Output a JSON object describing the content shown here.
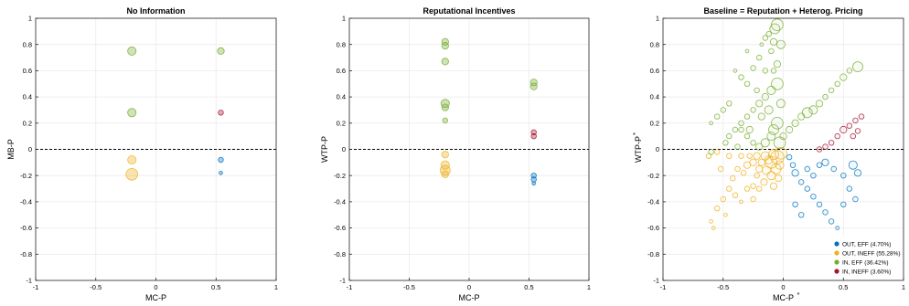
{
  "chart_data": [
    {
      "type": "scatter",
      "title": "No Information",
      "xlabel": "MC-P",
      "ylabel": "MB-P",
      "xlim": [
        -1,
        1
      ],
      "ylim": [
        -1,
        1
      ],
      "xticks": [
        -1,
        -0.5,
        0,
        0.5,
        1
      ],
      "xtick_labels": [
        "-1",
        "-0.5",
        "0",
        "0.5",
        "1"
      ],
      "yticks": [
        -1,
        -0.8,
        -0.6,
        -0.4,
        -0.2,
        0,
        0.2,
        0.4,
        0.6,
        0.8,
        1
      ],
      "ytick_labels": [
        "-1",
        "-0.8",
        "-0.6",
        "-0.4",
        "-0.2",
        "0",
        "0.2",
        "0.4",
        "0.6",
        "0.8",
        "1"
      ],
      "grid": true,
      "reference_line_y": 0,
      "series": [
        {
          "color": "#0072BD",
          "points": [
            [
              0.54,
              -0.08,
              2
            ],
            [
              0.54,
              -0.18,
              1
            ]
          ]
        },
        {
          "color": "#EDB120",
          "points": [
            [
              -0.2,
              -0.08,
              4
            ],
            [
              -0.2,
              -0.19,
              6
            ]
          ]
        },
        {
          "color": "#77AC30",
          "points": [
            [
              -0.2,
              0.75,
              4
            ],
            [
              -0.2,
              0.28,
              4
            ],
            [
              0.54,
              0.75,
              3
            ]
          ]
        },
        {
          "color": "#A2142F",
          "points": [
            [
              0.54,
              0.28,
              2
            ]
          ]
        }
      ]
    },
    {
      "type": "scatter",
      "title": "Reputational Incentives",
      "xlabel": "MC-P",
      "ylabel": "WTP-P",
      "xlim": [
        -1,
        1
      ],
      "ylim": [
        -1,
        1
      ],
      "xticks": [
        -1,
        -0.5,
        0,
        0.5,
        1
      ],
      "xtick_labels": [
        "-1",
        "-0.5",
        "0",
        "0.5",
        "1"
      ],
      "yticks": [
        -1,
        -0.8,
        -0.6,
        -0.4,
        -0.2,
        0,
        0.2,
        0.4,
        0.6,
        0.8,
        1
      ],
      "ytick_labels": [
        "-1",
        "-0.8",
        "-0.6",
        "-0.4",
        "-0.2",
        "0",
        "0.2",
        "0.4",
        "0.6",
        "0.8",
        "1"
      ],
      "grid": true,
      "reference_line_y": 0,
      "series": [
        {
          "color": "#0072BD",
          "points": [
            [
              0.54,
              -0.2,
              2
            ],
            [
              0.54,
              -0.23,
              2
            ],
            [
              0.54,
              -0.26,
              1
            ]
          ]
        },
        {
          "color": "#EDB120",
          "points": [
            [
              -0.2,
              -0.04,
              3
            ],
            [
              -0.2,
              -0.12,
              4
            ],
            [
              -0.2,
              -0.16,
              5
            ],
            [
              -0.2,
              -0.19,
              3
            ]
          ]
        },
        {
          "color": "#77AC30",
          "points": [
            [
              -0.2,
              0.82,
              3
            ],
            [
              -0.2,
              0.79,
              3
            ],
            [
              -0.2,
              0.67,
              3
            ],
            [
              -0.2,
              0.35,
              4
            ],
            [
              -0.2,
              0.32,
              3
            ],
            [
              -0.2,
              0.22,
              2
            ],
            [
              0.54,
              0.51,
              3
            ],
            [
              0.54,
              0.48,
              3
            ]
          ]
        },
        {
          "color": "#A2142F",
          "points": [
            [
              0.54,
              0.13,
              2
            ],
            [
              0.54,
              0.1,
              2
            ]
          ]
        }
      ]
    },
    {
      "type": "scatter",
      "title": "Baseline = Reputation + Heterog. Pricing",
      "xlabel": "MC-P",
      "xlabel_superscript": "*",
      "ylabel": "WTP-P",
      "ylabel_superscript": "*",
      "xlim": [
        -1,
        1
      ],
      "ylim": [
        -1,
        1
      ],
      "xticks": [
        -1,
        -0.5,
        0,
        0.5,
        1
      ],
      "xtick_labels": [
        "-1",
        "-0.5",
        "0",
        "0.5",
        "1"
      ],
      "yticks": [
        -1,
        -0.8,
        -0.6,
        -0.4,
        -0.2,
        0,
        0.2,
        0.4,
        0.6,
        0.8,
        1
      ],
      "ytick_labels": [
        "-1",
        "-0.8",
        "-0.6",
        "-0.4",
        "-0.2",
        "0",
        "0.2",
        "0.4",
        "0.6",
        "0.8",
        "1"
      ],
      "grid": true,
      "reference_line_y": 0,
      "legend_position": "bottom-right",
      "legend": [
        {
          "label": "OUT, EFF (4.70%)",
          "color": "#0072BD"
        },
        {
          "label": "OUT, INEFF (55.28%)",
          "color": "#EDB120"
        },
        {
          "label": "IN, EFF (36.42%)",
          "color": "#77AC30"
        },
        {
          "label": "IN, INEFF (3.60%)",
          "color": "#A2142F"
        }
      ],
      "series": [
        {
          "name": "OUT, EFF (4.70%)",
          "color": "#0072BD",
          "points": [
            [
              0.05,
              -0.06,
              2
            ],
            [
              0.08,
              -0.12,
              2
            ],
            [
              0.1,
              -0.18,
              3
            ],
            [
              0.15,
              -0.25,
              2
            ],
            [
              0.2,
              -0.3,
              2
            ],
            [
              0.25,
              -0.36,
              2
            ],
            [
              0.3,
              -0.42,
              2
            ],
            [
              0.35,
              -0.48,
              2
            ],
            [
              0.4,
              -0.55,
              2
            ],
            [
              0.45,
              -0.6,
              1
            ],
            [
              0.2,
              -0.15,
              2
            ],
            [
              0.25,
              -0.2,
              2
            ],
            [
              0.35,
              -0.1,
              3
            ],
            [
              0.3,
              -0.12,
              2
            ],
            [
              0.42,
              -0.15,
              2
            ],
            [
              0.5,
              -0.2,
              2
            ],
            [
              0.58,
              -0.12,
              4
            ],
            [
              0.62,
              -0.18,
              3
            ],
            [
              0.55,
              -0.3,
              2
            ],
            [
              0.6,
              -0.38,
              2
            ],
            [
              0.5,
              -0.42,
              2
            ],
            [
              0.1,
              -0.42,
              2
            ],
            [
              0.15,
              -0.5,
              2
            ]
          ]
        },
        {
          "name": "OUT, INEFF (55.28%)",
          "color": "#EDB120",
          "points": [
            [
              -0.02,
              -0.03,
              6
            ],
            [
              -0.05,
              -0.06,
              7
            ],
            [
              -0.08,
              -0.04,
              5
            ],
            [
              -0.1,
              -0.1,
              6
            ],
            [
              -0.12,
              -0.08,
              4
            ],
            [
              -0.03,
              -0.12,
              4
            ],
            [
              -0.06,
              -0.15,
              5
            ],
            [
              -0.15,
              -0.05,
              4
            ],
            [
              -0.18,
              -0.1,
              3
            ],
            [
              -0.14,
              -0.16,
              4
            ],
            [
              -0.2,
              -0.15,
              3
            ],
            [
              -0.1,
              -0.2,
              4
            ],
            [
              -0.25,
              -0.1,
              3
            ],
            [
              -0.22,
              -0.2,
              2
            ],
            [
              -0.28,
              -0.05,
              2
            ],
            [
              -0.3,
              -0.12,
              3
            ],
            [
              -0.16,
              -0.25,
              3
            ],
            [
              -0.2,
              -0.3,
              2
            ],
            [
              -0.33,
              -0.18,
              2
            ],
            [
              -0.25,
              -0.28,
              2
            ],
            [
              -0.35,
              -0.05,
              2
            ],
            [
              -0.38,
              -0.15,
              2
            ],
            [
              -0.42,
              -0.22,
              2
            ],
            [
              -0.3,
              -0.3,
              2
            ],
            [
              -0.45,
              -0.3,
              2
            ],
            [
              -0.4,
              -0.35,
              2
            ],
            [
              -0.5,
              -0.38,
              2
            ],
            [
              -0.35,
              -0.4,
              1
            ],
            [
              -0.55,
              -0.45,
              2
            ],
            [
              -0.48,
              -0.5,
              1
            ],
            [
              -0.6,
              -0.55,
              1
            ],
            [
              -0.58,
              -0.6,
              1
            ],
            [
              -0.45,
              -0.05,
              2
            ],
            [
              -0.52,
              -0.15,
              2
            ],
            [
              -0.08,
              -0.28,
              3
            ],
            [
              -0.04,
              -0.22,
              3
            ],
            [
              -0.22,
              -0.05,
              3
            ],
            [
              -0.55,
              -0.02,
              2
            ],
            [
              -0.62,
              -0.05,
              2
            ],
            [
              -0.25,
              -0.38,
              2
            ]
          ]
        },
        {
          "name": "IN, EFF (36.42%)",
          "color": "#77AC30",
          "points": [
            [
              -0.05,
              0.95,
              6
            ],
            [
              -0.07,
              0.92,
              5
            ],
            [
              -0.12,
              0.88,
              2
            ],
            [
              -0.15,
              0.85,
              2
            ],
            [
              -0.18,
              0.8,
              1
            ],
            [
              -0.1,
              0.75,
              2
            ],
            [
              -0.2,
              0.7,
              2
            ],
            [
              -0.25,
              0.62,
              2
            ],
            [
              -0.05,
              0.65,
              3
            ],
            [
              -0.08,
              0.6,
              2
            ],
            [
              -0.05,
              0.5,
              6
            ],
            [
              -0.1,
              0.45,
              4
            ],
            [
              -0.15,
              0.4,
              3
            ],
            [
              -0.2,
              0.35,
              3
            ],
            [
              -0.25,
              0.3,
              2
            ],
            [
              -0.3,
              0.25,
              2
            ],
            [
              -0.35,
              0.2,
              2
            ],
            [
              -0.4,
              0.15,
              2
            ],
            [
              -0.45,
              0.1,
              2
            ],
            [
              -0.05,
              0.2,
              6
            ],
            [
              -0.08,
              0.15,
              5
            ],
            [
              -0.1,
              0.1,
              4
            ],
            [
              -0.15,
              0.05,
              4
            ],
            [
              -0.03,
              0.05,
              6
            ],
            [
              -0.2,
              0.02,
              3
            ],
            [
              -0.25,
              0.05,
              2
            ],
            [
              -0.3,
              0.1,
              2
            ],
            [
              -0.35,
              0.15,
              2
            ],
            [
              -0.12,
              0.3,
              4
            ],
            [
              -0.18,
              0.25,
              3
            ],
            [
              -0.22,
              0.45,
              2
            ],
            [
              -0.3,
              0.5,
              2
            ],
            [
              -0.35,
              0.55,
              2
            ],
            [
              -0.4,
              0.6,
              1
            ],
            [
              -0.45,
              0.35,
              2
            ],
            [
              -0.5,
              0.3,
              2
            ],
            [
              -0.55,
              0.25,
              2
            ],
            [
              -0.6,
              0.2,
              1
            ],
            [
              -0.38,
              0.02,
              2
            ],
            [
              -0.48,
              0.05,
              2
            ],
            [
              -0.28,
              0.15,
              3
            ],
            [
              -0.02,
              0.35,
              4
            ],
            [
              0.2,
              0.28,
              5
            ],
            [
              0.25,
              0.3,
              4
            ],
            [
              0.3,
              0.35,
              3
            ],
            [
              0.35,
              0.4,
              2
            ],
            [
              0.4,
              0.45,
              2
            ],
            [
              0.45,
              0.5,
              2
            ],
            [
              0.5,
              0.55,
              3
            ],
            [
              0.55,
              0.6,
              2
            ],
            [
              0.62,
              0.63,
              5
            ],
            [
              0.1,
              0.2,
              3
            ],
            [
              0.15,
              0.25,
              3
            ],
            [
              0.05,
              0.15,
              3
            ],
            [
              0.0,
              0.1,
              3
            ],
            [
              -0.6,
              -0.02,
              2
            ],
            [
              -0.15,
              0.6,
              2
            ],
            [
              -0.3,
              0.75,
              1
            ],
            [
              -0.02,
              0.8,
              4
            ],
            [
              -0.08,
              0.82,
              3
            ]
          ]
        },
        {
          "name": "IN, INEFF (3.60%)",
          "color": "#A2142F",
          "points": [
            [
              0.45,
              0.1,
              2
            ],
            [
              0.5,
              0.15,
              3
            ],
            [
              0.55,
              0.18,
              2
            ],
            [
              0.6,
              0.22,
              2
            ],
            [
              0.65,
              0.25,
              2
            ],
            [
              0.4,
              0.05,
              2
            ],
            [
              0.3,
              0.0,
              2
            ],
            [
              0.35,
              0.02,
              2
            ],
            [
              0.58,
              0.1,
              2
            ],
            [
              0.62,
              0.14,
              2
            ]
          ]
        }
      ]
    }
  ]
}
